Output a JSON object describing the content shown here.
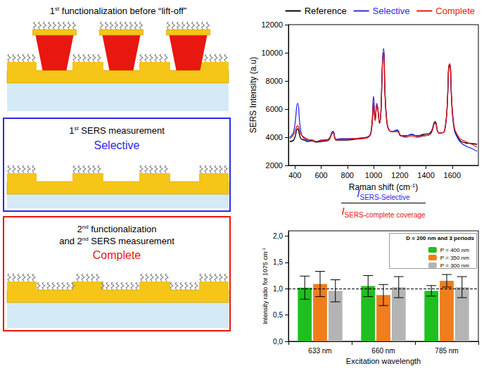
{
  "diagram": {
    "steps": [
      {
        "title": [
          "1st functionalization before “lift-off”"
        ]
      },
      {
        "title": [
          "1st SERS measurement"
        ],
        "label": "Selective",
        "color": "#2a2ae6"
      },
      {
        "title": [
          "2nd functionalization",
          "and 2nd SERS measurement"
        ],
        "label": "Complete",
        "color": "#e8170f"
      }
    ]
  },
  "chart_data": [
    {
      "type": "line",
      "xlabel": "Raman shift (cm-1)",
      "ylabel": "SERS Intensity (a.u)",
      "x": [
        360,
        390,
        420,
        445,
        470,
        500,
        530,
        560,
        600,
        650,
        690,
        715,
        750,
        800,
        850,
        900,
        950,
        980,
        1000,
        1012,
        1025,
        1045,
        1075,
        1100,
        1140,
        1180,
        1210,
        1250,
        1290,
        1330,
        1380,
        1430,
        1470,
        1500,
        1540,
        1580,
        1610,
        1650,
        1700,
        1750,
        1790
      ],
      "series": [
        {
          "name": "Reference",
          "color": "#000000",
          "values": [
            3700,
            3800,
            4600,
            3900,
            3800,
            3700,
            3750,
            3650,
            3700,
            3750,
            4400,
            3800,
            3800,
            3800,
            3850,
            3900,
            4000,
            4300,
            6400,
            5200,
            6300,
            5000,
            10000,
            5200,
            4400,
            4500,
            4100,
            4100,
            4200,
            4100,
            4200,
            4300,
            5100,
            4300,
            4400,
            9200,
            5000,
            3900,
            3600,
            3550,
            3500
          ]
        },
        {
          "name": "Selective",
          "color": "#2a2ae6",
          "values": [
            4000,
            4400,
            6400,
            4400,
            3900,
            3800,
            3800,
            3700,
            3800,
            3850,
            4400,
            3850,
            3900,
            3900,
            3900,
            3950,
            4000,
            4400,
            6900,
            5300,
            6400,
            5000,
            10300,
            5300,
            4400,
            4500,
            4100,
            4100,
            4200,
            4100,
            4100,
            4200,
            5000,
            4300,
            4400,
            9100,
            4900,
            3800,
            3400,
            3200,
            3000
          ]
        },
        {
          "name": "Complete",
          "color": "#e8170f",
          "values": [
            3900,
            4200,
            4800,
            4200,
            4000,
            3850,
            3800,
            3700,
            3750,
            3800,
            4300,
            3800,
            3850,
            3850,
            3900,
            3900,
            3950,
            4300,
            6400,
            5200,
            6300,
            5000,
            9900,
            5200,
            4400,
            4400,
            4100,
            4000,
            4100,
            4000,
            4100,
            4200,
            5000,
            4300,
            4400,
            9200,
            5100,
            4000,
            3700,
            3500,
            3300
          ]
        }
      ],
      "xlim": [
        350,
        1800
      ],
      "xticks": [
        400,
        600,
        800,
        1000,
        1200,
        1400,
        1600
      ],
      "ylim": [
        2000,
        12000
      ],
      "yticks": [
        2000,
        4000,
        6000,
        8000,
        10000,
        12000
      ],
      "grid": false,
      "legend": "top"
    },
    {
      "type": "bar",
      "formula": {
        "numerator": {
          "symbol": "I",
          "subscript": "SERS-Selective",
          "color": "#2a2ae6"
        },
        "denominator": {
          "symbol": "I",
          "subscript": "SERS-complete coverage",
          "color": "#e8170f"
        }
      },
      "xlabel": "Excitation wavelength",
      "ylabel": "Intensity ratio for 1075 cm-1",
      "categories": [
        "633 nm",
        "660 nm",
        "785 nm"
      ],
      "legend_title": "D = 200 nm and 3 periods",
      "series": [
        {
          "name": "P = 400 nm",
          "color": "#1fbf1f",
          "values": [
            1.02,
            1.05,
            0.96
          ],
          "errors": [
            0.22,
            0.2,
            0.1
          ]
        },
        {
          "name": "P = 350 nm",
          "color": "#f07d1e",
          "values": [
            1.09,
            0.88,
            1.15
          ],
          "errors": [
            0.24,
            0.2,
            0.12
          ]
        },
        {
          "name": "P = 300 nm",
          "color": "#b4b4b4",
          "values": [
            0.96,
            1.03,
            1.03
          ],
          "errors": [
            0.21,
            0.2,
            0.2
          ]
        }
      ],
      "reference_line": 1,
      "ylim": [
        0,
        2.1
      ],
      "yticks": [
        {
          "value": 0,
          "label": "0,0"
        },
        {
          "value": 0.5,
          "label": "0,5"
        },
        {
          "value": 1,
          "label": "1,0"
        },
        {
          "value": 1.5,
          "label": "1,5"
        },
        {
          "value": 2,
          "label": "2,0"
        }
      ],
      "grid": false,
      "legend": "upper right"
    }
  ]
}
